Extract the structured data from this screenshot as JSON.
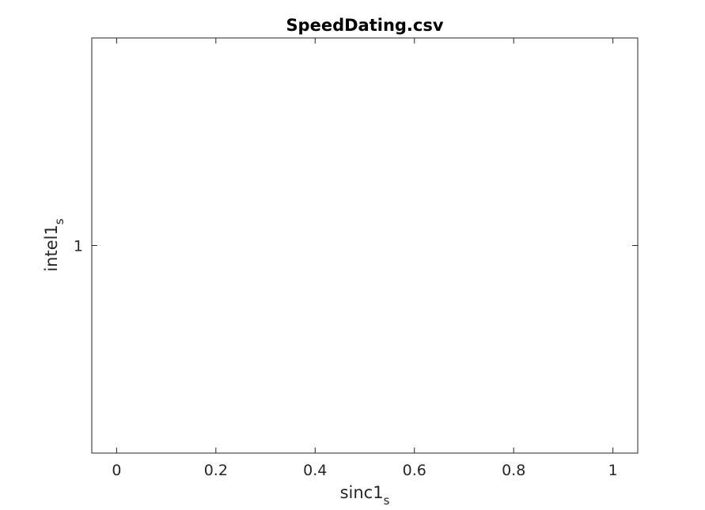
{
  "chart_data": {
    "type": "scatter",
    "title": "SpeedDating.csv",
    "xlabel": {
      "base": "sinc1",
      "subscript": "s"
    },
    "ylabel": {
      "base": "intel1",
      "subscript": "s"
    },
    "xlim": [
      -0.05,
      1.05
    ],
    "ylim": [
      0.5,
      1.5
    ],
    "xticks": [
      0,
      0.2,
      0.4,
      0.6,
      0.8,
      1
    ],
    "xtick_labels": [
      "0",
      "0.2",
      "0.4",
      "0.6",
      "0.8",
      "1"
    ],
    "yticks": [
      1
    ],
    "ytick_labels": [
      "1"
    ],
    "series": [
      {
        "x": [],
        "y": []
      }
    ],
    "grid": false,
    "colors": {
      "axis": "#262626",
      "background": "#ffffff"
    }
  }
}
